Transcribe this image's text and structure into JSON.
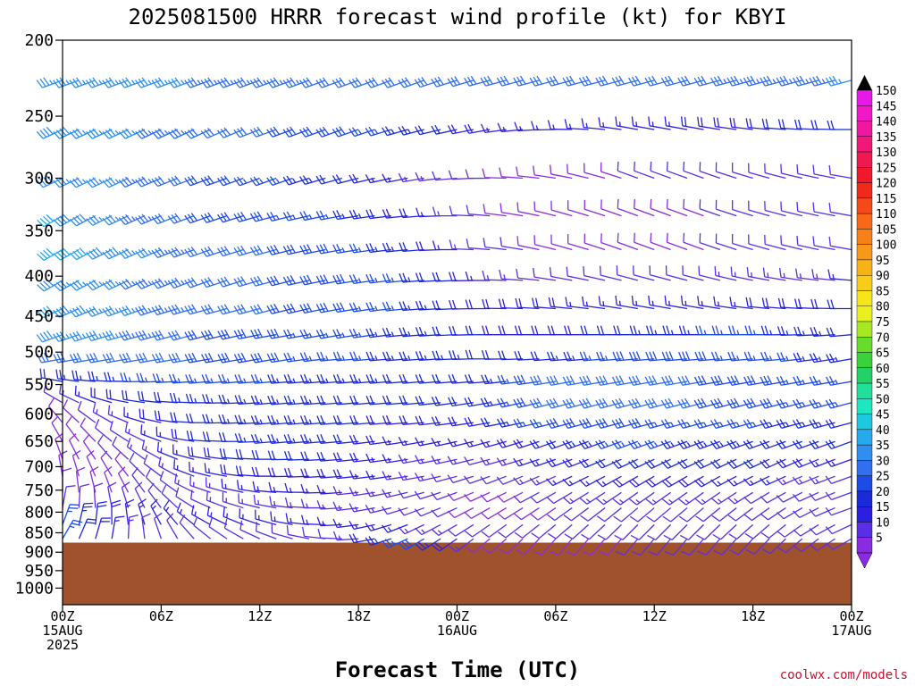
{
  "chart_data": {
    "type": "wind-barb profile",
    "title": "2025081500 HRRR forecast wind profile (kt) for KBYI",
    "xlabel": "Forecast Time (UTC)",
    "ylabel": "",
    "credit": "coolwx.com/models",
    "y_axis": {
      "scale": "log",
      "ylim": [
        1050,
        200
      ],
      "ticks": [
        200,
        250,
        300,
        350,
        400,
        450,
        500,
        550,
        600,
        650,
        700,
        750,
        800,
        850,
        900,
        950,
        1000
      ]
    },
    "x_axis": {
      "xlim_hours": [
        0,
        48
      ],
      "ticks": [
        {
          "hour": 0,
          "lines": [
            "00Z",
            "15AUG",
            "2025"
          ]
        },
        {
          "hour": 6,
          "lines": [
            "06Z"
          ]
        },
        {
          "hour": 12,
          "lines": [
            "12Z"
          ]
        },
        {
          "hour": 18,
          "lines": [
            "18Z"
          ]
        },
        {
          "hour": 24,
          "lines": [
            "00Z",
            "16AUG"
          ]
        },
        {
          "hour": 30,
          "lines": [
            "06Z"
          ]
        },
        {
          "hour": 36,
          "lines": [
            "12Z"
          ]
        },
        {
          "hour": 42,
          "lines": [
            "18Z"
          ]
        },
        {
          "hour": 48,
          "lines": [
            "00Z",
            "17AUG"
          ]
        }
      ]
    },
    "colorbar": {
      "units": "kt",
      "levels": [
        5,
        10,
        15,
        20,
        25,
        30,
        35,
        40,
        45,
        50,
        55,
        60,
        65,
        70,
        75,
        80,
        85,
        90,
        95,
        100,
        105,
        110,
        115,
        120,
        125,
        130,
        135,
        140,
        145,
        150
      ],
      "colors": [
        "#8a2be2",
        "#5a2ee6",
        "#2b1fe0",
        "#1b2ad8",
        "#1d4be8",
        "#2f6ff0",
        "#2f8ff0",
        "#25aaee",
        "#1ec8e0",
        "#1ee6c0",
        "#22e09a",
        "#22d266",
        "#3ad23a",
        "#66dd2a",
        "#a8e822",
        "#e8f01e",
        "#f5e51a",
        "#f8cc18",
        "#f8b218",
        "#f89818",
        "#f88018",
        "#f86818",
        "#f54a18",
        "#f02a18",
        "#f0182a",
        "#f01850",
        "#f01878",
        "#f018a0",
        "#f018c8",
        "#e818e8"
      ]
    },
    "terrain_color": "#a0522d",
    "surface_pressure_approx_hPa": 875,
    "wind_barbs": {
      "levels_hPa": [
        225,
        260,
        300,
        335,
        370,
        405,
        440,
        475,
        510,
        545,
        580,
        615,
        650,
        685,
        720,
        755,
        790,
        830,
        865
      ],
      "time_step_hours": 1,
      "speed_kt_by_level": [
        [
          35,
          35,
          35,
          33,
          32,
          30,
          30,
          30,
          30,
          32,
          34,
          35
        ],
        [
          38,
          36,
          32,
          30,
          28,
          24,
          18,
          15,
          15,
          18,
          20,
          22
        ],
        [
          38,
          35,
          30,
          26,
          22,
          14,
          10,
          8,
          10,
          12,
          12,
          12
        ],
        [
          40,
          35,
          30,
          28,
          25,
          18,
          10,
          8,
          8,
          10,
          12,
          12
        ],
        [
          42,
          38,
          32,
          30,
          28,
          22,
          12,
          8,
          8,
          10,
          12,
          12
        ],
        [
          38,
          35,
          32,
          30,
          28,
          25,
          15,
          10,
          10,
          12,
          14,
          15
        ],
        [
          40,
          36,
          32,
          30,
          28,
          25,
          18,
          18,
          15,
          15,
          18,
          20
        ],
        [
          38,
          35,
          30,
          28,
          26,
          24,
          20,
          18,
          22,
          25,
          25,
          22
        ],
        [
          30,
          32,
          30,
          28,
          26,
          24,
          22,
          22,
          28,
          28,
          26,
          24
        ],
        [
          22,
          25,
          26,
          25,
          24,
          22,
          22,
          32,
          32,
          30,
          28,
          25
        ],
        [
          12,
          20,
          24,
          24,
          22,
          20,
          22,
          32,
          32,
          30,
          28,
          26
        ],
        [
          8,
          15,
          22,
          24,
          22,
          18,
          20,
          28,
          28,
          26,
          25,
          22
        ],
        [
          8,
          12,
          20,
          24,
          22,
          16,
          15,
          22,
          26,
          24,
          22,
          20
        ],
        [
          8,
          12,
          18,
          22,
          20,
          15,
          12,
          18,
          22,
          22,
          20,
          16
        ],
        [
          8,
          10,
          16,
          20,
          18,
          14,
          10,
          15,
          18,
          18,
          16,
          12
        ],
        [
          8,
          10,
          14,
          16,
          15,
          12,
          8,
          12,
          14,
          14,
          12,
          10
        ],
        [
          10,
          10,
          12,
          14,
          14,
          12,
          8,
          10,
          12,
          12,
          10,
          10
        ],
        [
          25,
          15,
          15,
          15,
          15,
          15,
          10,
          10,
          12,
          12,
          10,
          10
        ],
        [
          25,
          12,
          12,
          12,
          12,
          30,
          8,
          8,
          10,
          10,
          10,
          12
        ]
      ],
      "direction_deg_by_level": [
        [
          250,
          250,
          250,
          250,
          250,
          250,
          255,
          255,
          255,
          255,
          255,
          255
        ],
        [
          245,
          245,
          245,
          250,
          250,
          255,
          260,
          270,
          280,
          280,
          275,
          270
        ],
        [
          245,
          245,
          250,
          250,
          255,
          260,
          270,
          280,
          290,
          290,
          285,
          280
        ],
        [
          240,
          245,
          250,
          255,
          260,
          265,
          275,
          285,
          290,
          290,
          285,
          280
        ],
        [
          240,
          245,
          250,
          255,
          260,
          265,
          275,
          285,
          290,
          290,
          285,
          280
        ],
        [
          240,
          245,
          250,
          255,
          260,
          265,
          270,
          280,
          285,
          285,
          280,
          275
        ],
        [
          245,
          250,
          255,
          255,
          260,
          265,
          270,
          275,
          280,
          280,
          275,
          270
        ],
        [
          250,
          255,
          255,
          260,
          260,
          265,
          270,
          270,
          270,
          270,
          270,
          265
        ],
        [
          260,
          260,
          260,
          260,
          265,
          265,
          270,
          265,
          265,
          265,
          265,
          260
        ],
        [
          280,
          270,
          265,
          265,
          265,
          265,
          265,
          260,
          260,
          260,
          260,
          260
        ],
        [
          300,
          280,
          270,
          265,
          265,
          265,
          260,
          255,
          255,
          255,
          255,
          255
        ],
        [
          320,
          290,
          270,
          265,
          265,
          265,
          260,
          255,
          255,
          255,
          255,
          255
        ],
        [
          330,
          300,
          275,
          265,
          265,
          260,
          255,
          250,
          250,
          250,
          250,
          250
        ],
        [
          340,
          310,
          280,
          270,
          265,
          260,
          255,
          250,
          245,
          245,
          245,
          250
        ],
        [
          350,
          320,
          285,
          270,
          265,
          260,
          250,
          245,
          240,
          240,
          245,
          250
        ],
        [
          360,
          330,
          290,
          275,
          265,
          255,
          245,
          240,
          235,
          235,
          240,
          250
        ],
        [
          10,
          340,
          295,
          280,
          265,
          250,
          240,
          235,
          230,
          230,
          235,
          250
        ],
        [
          20,
          350,
          300,
          285,
          265,
          245,
          235,
          230,
          225,
          225,
          230,
          245
        ],
        [
          30,
          0,
          310,
          290,
          270,
          240,
          230,
          220,
          220,
          220,
          225,
          240
        ]
      ]
    }
  }
}
